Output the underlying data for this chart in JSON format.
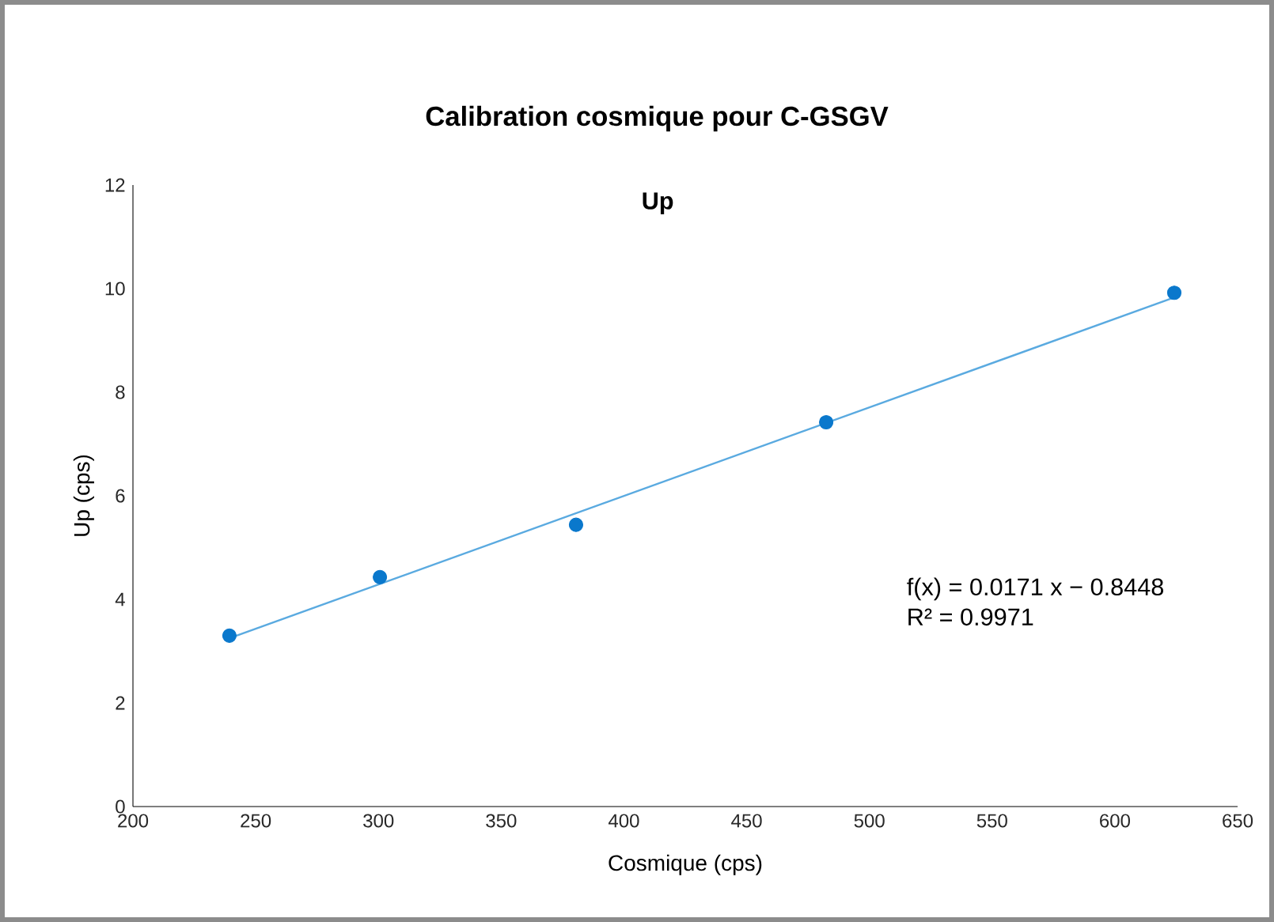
{
  "chart_data": {
    "type": "scatter",
    "title": "Calibration cosmique pour C-GSGV",
    "subtitle": "Up",
    "xlabel": "Cosmique (cps)",
    "ylabel": "Up (cps)",
    "annotations": [
      "f(x) = 0.0171 x − 0.8448",
      "R² = 0.9971"
    ],
    "series": [
      {
        "color": "#0a78cc",
        "marker": "circle",
        "x": [
          239.3,
          300.6,
          380.5,
          482.4,
          624.2
        ],
        "values": [
          3.3,
          4.43,
          5.44,
          7.42,
          9.92
        ]
      },
      {
        "type": "line",
        "color": "#5aaae0",
        "marker": "none",
        "x": [
          239.3,
          624.2
        ],
        "values": [
          3.25,
          9.83
        ]
      }
    ],
    "xlim": [
      200,
      650
    ],
    "xticks": [
      200,
      250,
      300,
      350,
      400,
      450,
      500,
      550,
      600,
      650
    ],
    "ylim": [
      0,
      12
    ],
    "yticks": [
      0,
      2,
      4,
      6,
      8,
      10,
      12
    ],
    "grid": false
  }
}
